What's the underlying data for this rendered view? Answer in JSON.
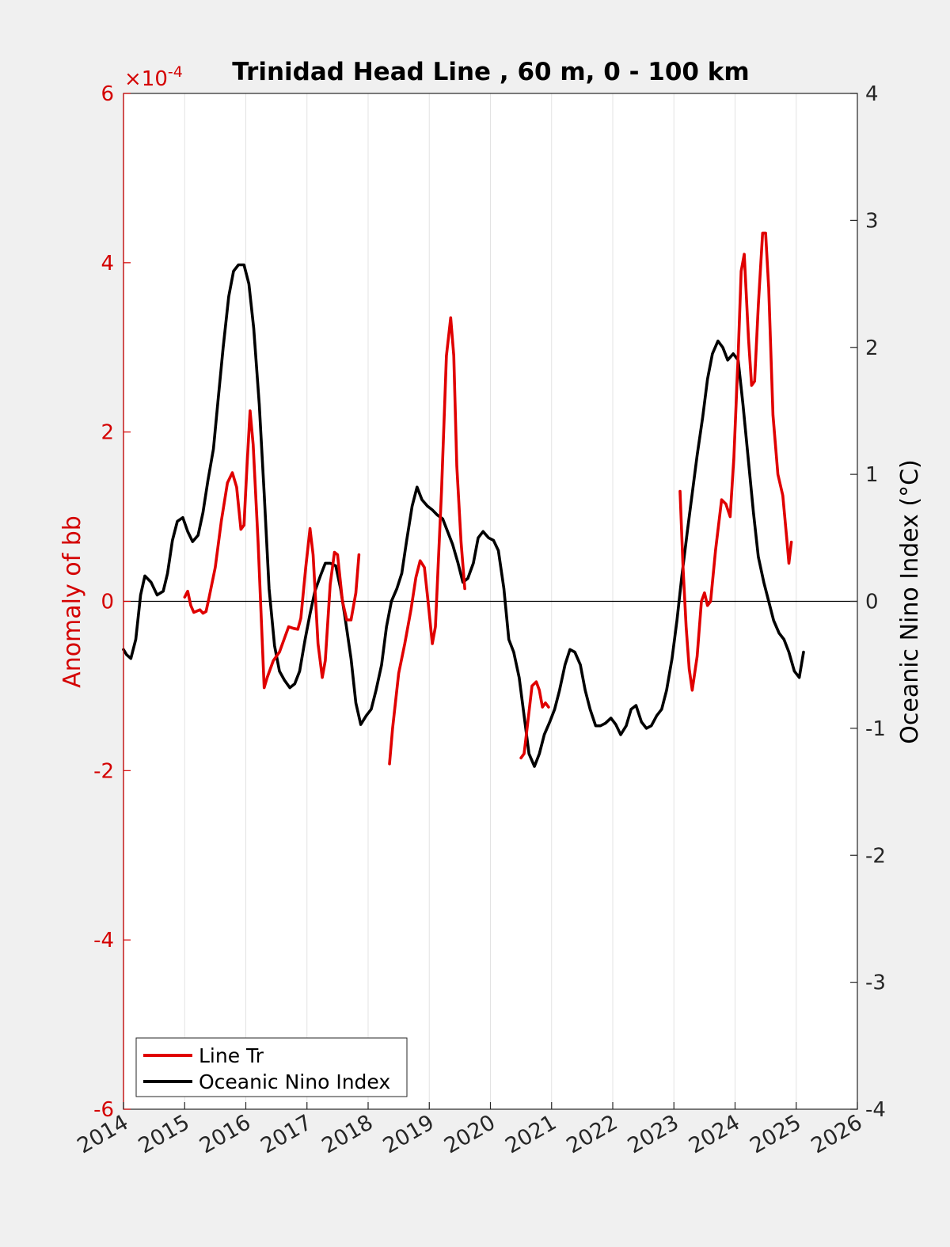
{
  "chart_data": {
    "type": "line",
    "title": "Trinidad Head Line , 60 m, 0 - 100 km",
    "xlabel": "",
    "ylabel_left": "Anomaly of bb",
    "ylabel_right": "Oceanic Nino Index (°C)",
    "left_axis_exponent_base": "×10",
    "left_axis_exponent_power": "-4",
    "xlim": [
      2014,
      2026
    ],
    "ylim_left": [
      -6,
      6
    ],
    "ylim_right": [
      -4,
      4
    ],
    "x_ticks": [
      "2014",
      "2015",
      "2016",
      "2017",
      "2018",
      "2019",
      "2020",
      "2021",
      "2022",
      "2023",
      "2024",
      "2025",
      "2026"
    ],
    "y_ticks_left": [
      "-6",
      "-4",
      "-2",
      "0",
      "2",
      "4",
      "6"
    ],
    "y_ticks_right": [
      "-4",
      "-3",
      "-2",
      "-1",
      "0",
      "1",
      "2",
      "3",
      "4"
    ],
    "grid": "vertical",
    "legend_position": "bottom-left",
    "colors": {
      "line_tr": "#e00000",
      "oni": "#000000",
      "left_axis": "#d40000"
    },
    "series": [
      {
        "name": "Line Tr",
        "axis": "left",
        "units_scale": "1e-4",
        "segments": [
          [
            [
              2015.0,
              0.05
            ],
            [
              2015.05,
              0.12
            ],
            [
              2015.1,
              -0.05
            ],
            [
              2015.15,
              -0.13
            ],
            [
              2015.25,
              -0.1
            ],
            [
              2015.3,
              -0.14
            ],
            [
              2015.35,
              -0.12
            ],
            [
              2015.4,
              0.05
            ],
            [
              2015.5,
              0.4
            ],
            [
              2015.6,
              0.95
            ],
            [
              2015.7,
              1.4
            ],
            [
              2015.78,
              1.52
            ],
            [
              2015.85,
              1.35
            ],
            [
              2015.92,
              0.85
            ],
            [
              2015.97,
              0.9
            ],
            [
              2016.02,
              1.6
            ],
            [
              2016.07,
              2.25
            ],
            [
              2016.12,
              1.85
            ],
            [
              2016.2,
              0.7
            ],
            [
              2016.3,
              -1.02
            ],
            [
              2016.35,
              -0.9
            ],
            [
              2016.45,
              -0.7
            ],
            [
              2016.55,
              -0.6
            ],
            [
              2016.65,
              -0.4
            ],
            [
              2016.7,
              -0.3
            ],
            [
              2016.78,
              -0.32
            ],
            [
              2016.85,
              -0.33
            ],
            [
              2016.9,
              -0.2
            ],
            [
              2016.98,
              0.4
            ],
            [
              2017.05,
              0.86
            ],
            [
              2017.1,
              0.55
            ],
            [
              2017.18,
              -0.5
            ],
            [
              2017.25,
              -0.9
            ],
            [
              2017.3,
              -0.7
            ],
            [
              2017.38,
              0.2
            ],
            [
              2017.45,
              0.58
            ],
            [
              2017.5,
              0.55
            ],
            [
              2017.58,
              0.0
            ],
            [
              2017.65,
              -0.22
            ],
            [
              2017.72,
              -0.22
            ],
            [
              2017.8,
              0.1
            ],
            [
              2017.85,
              0.55
            ]
          ],
          [
            [
              2018.35,
              -1.92
            ],
            [
              2018.4,
              -1.5
            ],
            [
              2018.5,
              -0.85
            ],
            [
              2018.6,
              -0.5
            ],
            [
              2018.7,
              -0.1
            ],
            [
              2018.78,
              0.28
            ],
            [
              2018.85,
              0.48
            ],
            [
              2018.92,
              0.4
            ],
            [
              2018.98,
              0.0
            ],
            [
              2019.05,
              -0.5
            ],
            [
              2019.1,
              -0.3
            ],
            [
              2019.2,
              1.3
            ],
            [
              2019.28,
              2.9
            ],
            [
              2019.35,
              3.35
            ],
            [
              2019.4,
              2.9
            ],
            [
              2019.45,
              1.6
            ],
            [
              2019.52,
              0.7
            ],
            [
              2019.58,
              0.15
            ]
          ],
          [
            [
              2020.5,
              -1.85
            ],
            [
              2020.55,
              -1.8
            ],
            [
              2020.6,
              -1.5
            ],
            [
              2020.68,
              -1.0
            ],
            [
              2020.75,
              -0.95
            ],
            [
              2020.8,
              -1.05
            ],
            [
              2020.85,
              -1.25
            ],
            [
              2020.9,
              -1.2
            ],
            [
              2020.95,
              -1.25
            ]
          ],
          [
            [
              2023.1,
              1.3
            ],
            [
              2023.15,
              0.4
            ],
            [
              2023.2,
              -0.3
            ],
            [
              2023.25,
              -0.8
            ],
            [
              2023.3,
              -1.05
            ],
            [
              2023.38,
              -0.65
            ],
            [
              2023.45,
              0.0
            ],
            [
              2023.5,
              0.1
            ],
            [
              2023.55,
              -0.05
            ],
            [
              2023.6,
              0.0
            ],
            [
              2023.68,
              0.6
            ],
            [
              2023.78,
              1.2
            ],
            [
              2023.85,
              1.15
            ],
            [
              2023.92,
              1.0
            ],
            [
              2023.98,
              1.7
            ],
            [
              2024.05,
              2.9
            ],
            [
              2024.1,
              3.9
            ],
            [
              2024.15,
              4.1
            ],
            [
              2024.22,
              3.1
            ],
            [
              2024.27,
              2.55
            ],
            [
              2024.32,
              2.6
            ],
            [
              2024.38,
              3.5
            ],
            [
              2024.45,
              4.35
            ],
            [
              2024.5,
              4.35
            ],
            [
              2024.55,
              3.7
            ],
            [
              2024.62,
              2.2
            ],
            [
              2024.7,
              1.5
            ],
            [
              2024.78,
              1.25
            ],
            [
              2024.85,
              0.7
            ],
            [
              2024.88,
              0.45
            ],
            [
              2024.92,
              0.7
            ]
          ]
        ]
      },
      {
        "name": "Oceanic Nino Index",
        "axis": "right",
        "segments": [
          [
            [
              2014.0,
              -0.38
            ],
            [
              2014.05,
              -0.42
            ],
            [
              2014.12,
              -0.45
            ],
            [
              2014.2,
              -0.3
            ],
            [
              2014.28,
              0.05
            ],
            [
              2014.35,
              0.2
            ],
            [
              2014.45,
              0.15
            ],
            [
              2014.55,
              0.05
            ],
            [
              2014.65,
              0.08
            ],
            [
              2014.72,
              0.22
            ],
            [
              2014.8,
              0.48
            ],
            [
              2014.88,
              0.63
            ],
            [
              2014.97,
              0.66
            ],
            [
              2015.05,
              0.55
            ],
            [
              2015.13,
              0.47
            ],
            [
              2015.22,
              0.52
            ],
            [
              2015.3,
              0.7
            ],
            [
              2015.38,
              0.95
            ],
            [
              2015.47,
              1.2
            ],
            [
              2015.55,
              1.6
            ],
            [
              2015.63,
              2.0
            ],
            [
              2015.72,
              2.4
            ],
            [
              2015.8,
              2.6
            ],
            [
              2015.88,
              2.65
            ],
            [
              2015.97,
              2.65
            ],
            [
              2016.05,
              2.5
            ],
            [
              2016.13,
              2.15
            ],
            [
              2016.22,
              1.55
            ],
            [
              2016.3,
              0.85
            ],
            [
              2016.38,
              0.1
            ],
            [
              2016.47,
              -0.35
            ],
            [
              2016.55,
              -0.55
            ],
            [
              2016.63,
              -0.62
            ],
            [
              2016.72,
              -0.68
            ],
            [
              2016.8,
              -0.65
            ],
            [
              2016.88,
              -0.55
            ],
            [
              2016.97,
              -0.3
            ],
            [
              2017.05,
              -0.1
            ],
            [
              2017.13,
              0.08
            ],
            [
              2017.22,
              0.2
            ],
            [
              2017.3,
              0.3
            ],
            [
              2017.38,
              0.3
            ],
            [
              2017.47,
              0.28
            ],
            [
              2017.55,
              0.1
            ],
            [
              2017.63,
              -0.15
            ],
            [
              2017.72,
              -0.45
            ],
            [
              2017.8,
              -0.8
            ],
            [
              2017.88,
              -0.97
            ],
            [
              2017.97,
              -0.9
            ],
            [
              2018.05,
              -0.85
            ],
            [
              2018.13,
              -0.7
            ],
            [
              2018.22,
              -0.5
            ],
            [
              2018.3,
              -0.2
            ],
            [
              2018.38,
              0.0
            ],
            [
              2018.47,
              0.1
            ],
            [
              2018.55,
              0.22
            ],
            [
              2018.63,
              0.48
            ],
            [
              2018.72,
              0.75
            ],
            [
              2018.8,
              0.9
            ],
            [
              2018.88,
              0.8
            ],
            [
              2018.97,
              0.75
            ],
            [
              2019.05,
              0.72
            ],
            [
              2019.13,
              0.68
            ],
            [
              2019.22,
              0.65
            ],
            [
              2019.3,
              0.55
            ],
            [
              2019.38,
              0.45
            ],
            [
              2019.47,
              0.3
            ],
            [
              2019.55,
              0.15
            ],
            [
              2019.63,
              0.18
            ],
            [
              2019.72,
              0.3
            ],
            [
              2019.8,
              0.5
            ],
            [
              2019.88,
              0.55
            ],
            [
              2019.97,
              0.5
            ],
            [
              2020.05,
              0.48
            ],
            [
              2020.13,
              0.4
            ],
            [
              2020.22,
              0.1
            ],
            [
              2020.3,
              -0.3
            ],
            [
              2020.38,
              -0.4
            ],
            [
              2020.47,
              -0.6
            ],
            [
              2020.55,
              -0.9
            ],
            [
              2020.63,
              -1.2
            ],
            [
              2020.72,
              -1.3
            ],
            [
              2020.8,
              -1.2
            ],
            [
              2020.88,
              -1.05
            ],
            [
              2020.97,
              -0.95
            ],
            [
              2021.05,
              -0.85
            ],
            [
              2021.13,
              -0.7
            ],
            [
              2021.22,
              -0.5
            ],
            [
              2021.3,
              -0.38
            ],
            [
              2021.38,
              -0.4
            ],
            [
              2021.47,
              -0.5
            ],
            [
              2021.55,
              -0.7
            ],
            [
              2021.63,
              -0.85
            ],
            [
              2021.72,
              -0.98
            ],
            [
              2021.8,
              -0.98
            ],
            [
              2021.88,
              -0.96
            ],
            [
              2021.97,
              -0.92
            ],
            [
              2022.05,
              -0.97
            ],
            [
              2022.13,
              -1.05
            ],
            [
              2022.22,
              -0.98
            ],
            [
              2022.3,
              -0.85
            ],
            [
              2022.38,
              -0.82
            ],
            [
              2022.47,
              -0.95
            ],
            [
              2022.55,
              -1.0
            ],
            [
              2022.63,
              -0.98
            ],
            [
              2022.72,
              -0.9
            ],
            [
              2022.8,
              -0.85
            ],
            [
              2022.88,
              -0.7
            ],
            [
              2022.97,
              -0.45
            ],
            [
              2023.05,
              -0.15
            ],
            [
              2023.13,
              0.2
            ],
            [
              2023.22,
              0.55
            ],
            [
              2023.3,
              0.85
            ],
            [
              2023.38,
              1.15
            ],
            [
              2023.47,
              1.45
            ],
            [
              2023.55,
              1.75
            ],
            [
              2023.63,
              1.95
            ],
            [
              2023.72,
              2.05
            ],
            [
              2023.8,
              2.0
            ],
            [
              2023.88,
              1.9
            ],
            [
              2023.97,
              1.95
            ],
            [
              2024.05,
              1.9
            ],
            [
              2024.13,
              1.55
            ],
            [
              2024.22,
              1.1
            ],
            [
              2024.3,
              0.7
            ],
            [
              2024.38,
              0.35
            ],
            [
              2024.47,
              0.15
            ],
            [
              2024.55,
              0.0
            ],
            [
              2024.63,
              -0.15
            ],
            [
              2024.72,
              -0.25
            ],
            [
              2024.8,
              -0.3
            ],
            [
              2024.88,
              -0.4
            ],
            [
              2024.97,
              -0.55
            ],
            [
              2025.05,
              -0.6
            ],
            [
              2025.12,
              -0.4
            ]
          ]
        ]
      }
    ]
  }
}
